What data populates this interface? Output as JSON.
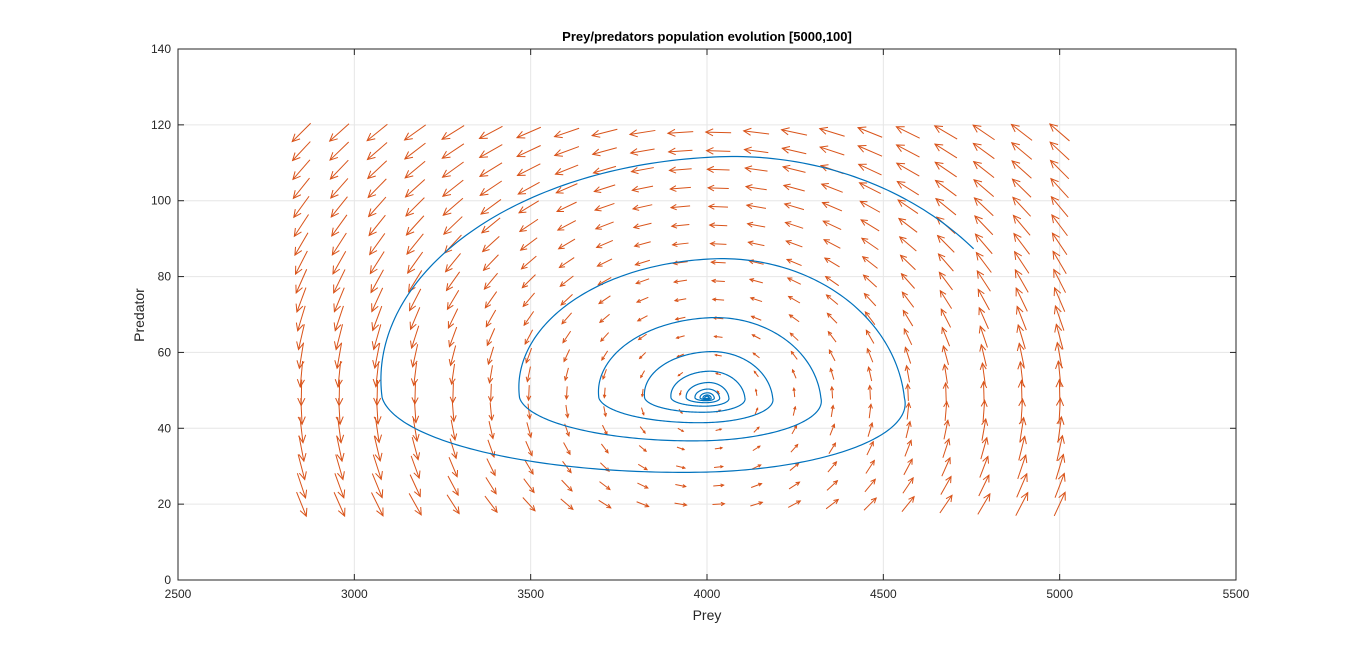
{
  "chart_data": {
    "type": "line",
    "title": "Prey/predators population evolution [5000,100]",
    "xlabel": "Prey",
    "ylabel": "Predator",
    "xlim": [
      2500,
      5500
    ],
    "ylim": [
      0,
      140
    ],
    "xticks": [
      "2500",
      "3000",
      "3500",
      "4000",
      "4500",
      "5000",
      "5500"
    ],
    "yticks": [
      "0",
      "20",
      "40",
      "60",
      "80",
      "100",
      "120",
      "140"
    ],
    "grid": true,
    "legend": "none",
    "colors": {
      "trajectory": "#0072BD",
      "quiver": "#D95319",
      "grid": "#e6e6e6",
      "axis": "#262626"
    },
    "series": [
      {
        "kind": "trajectory",
        "start": [
          5000,
          100
        ],
        "equilibrium": [
          4000,
          48
        ],
        "extremes": {
          "prey_min": 2850,
          "prey_max": 4920,
          "predator_min": 20,
          "predator_max": 117
        }
      },
      {
        "kind": "quiver",
        "x_range": [
          2850,
          5000
        ],
        "y_range": [
          20,
          118
        ],
        "columns": 21,
        "rows": 21
      }
    ]
  }
}
